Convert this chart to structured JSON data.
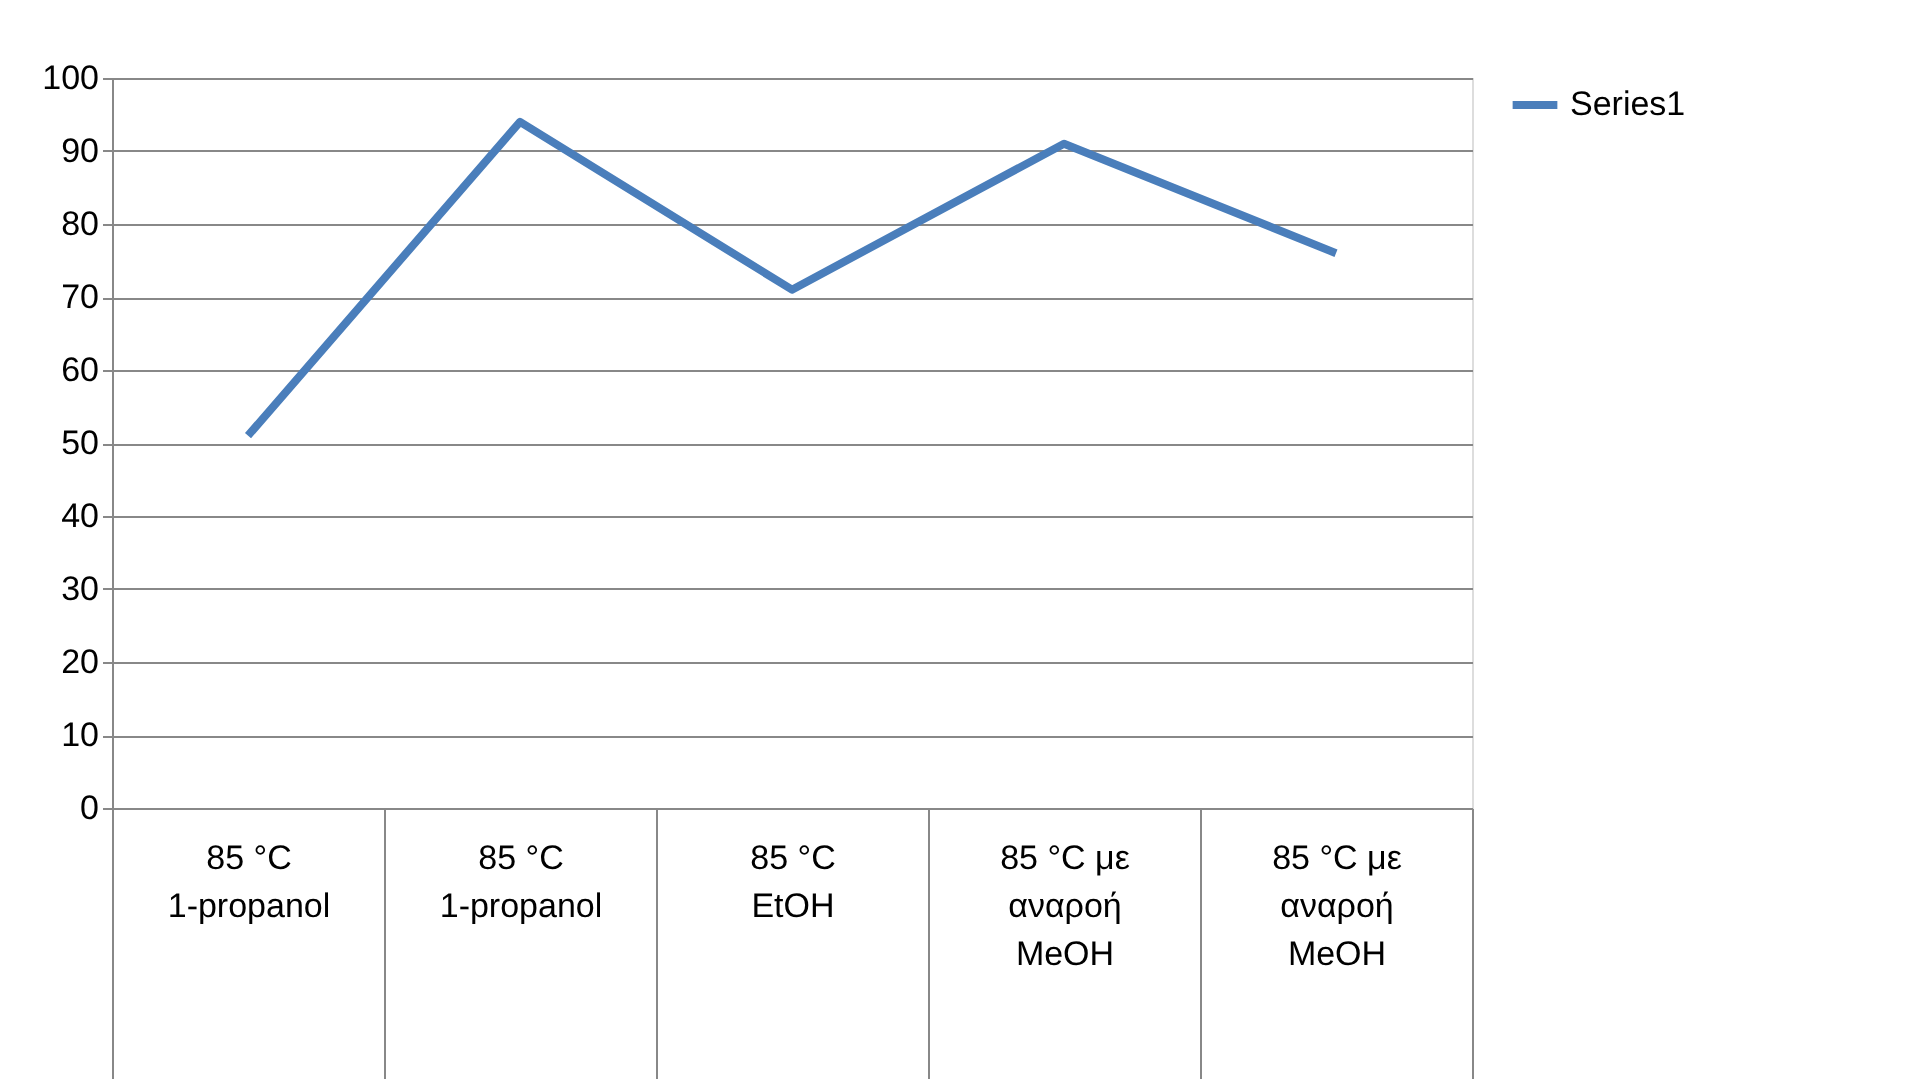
{
  "chart_data": {
    "type": "line",
    "categories": [
      "85 °C\n1-propanol",
      "85 °C\n1-propanol",
      "85 °C\nEtOH",
      "85 °C με αναροή\nMeOH",
      "85 °C με αναροή\nMeOH"
    ],
    "series": [
      {
        "name": "Series1",
        "color": "#4a7ebb",
        "values": [
          51,
          94,
          71,
          91,
          76
        ]
      }
    ],
    "ylim": [
      0,
      100
    ],
    "yticks": [
      0,
      10,
      20,
      30,
      40,
      50,
      60,
      70,
      80,
      90,
      100
    ],
    "grid": "y",
    "legend": "right",
    "marker": "none",
    "line_style": "solid"
  }
}
